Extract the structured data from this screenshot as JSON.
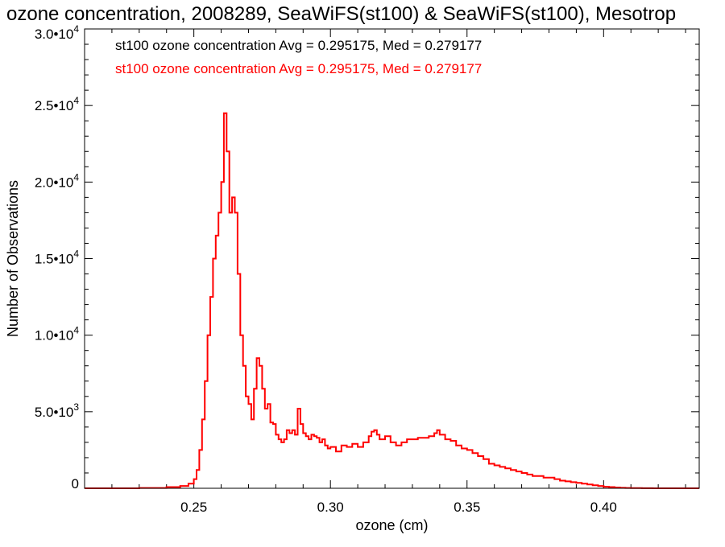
{
  "chart_data": {
    "type": "line",
    "title": "ozone concentration, 2008289, SeaWiFS(st100) & SeaWiFS(st100), Mesotrop",
    "xlabel": "ozone (cm)",
    "ylabel": "Number of Observations",
    "xlim": [
      0.21,
      0.435
    ],
    "ylim": [
      0,
      30000
    ],
    "x_ticks": [
      {
        "value": 0.25,
        "label": "0.25"
      },
      {
        "value": 0.3,
        "label": "0.30"
      },
      {
        "value": 0.35,
        "label": "0.35"
      },
      {
        "value": 0.4,
        "label": "0.40"
      }
    ],
    "y_ticks": [
      {
        "value": 0,
        "mantissa": "0",
        "exponent": ""
      },
      {
        "value": 5000,
        "mantissa": "5.0•10",
        "exponent": "3"
      },
      {
        "value": 10000,
        "mantissa": "1.0•10",
        "exponent": "4"
      },
      {
        "value": 15000,
        "mantissa": "1.5•10",
        "exponent": "4"
      },
      {
        "value": 20000,
        "mantissa": "2.0•10",
        "exponent": "4"
      },
      {
        "value": 25000,
        "mantissa": "2.5•10",
        "exponent": "4"
      },
      {
        "value": 30000,
        "mantissa": "3.0•10",
        "exponent": "4"
      }
    ],
    "grid": false,
    "annotations": [
      {
        "text": "st100 ozone concentration Avg = 0.295175, Med = 0.279177",
        "color": "#000000"
      },
      {
        "text": "st100 ozone concentration Avg = 0.295175, Med = 0.279177",
        "color": "#ff0000"
      }
    ],
    "series": [
      {
        "color": "#ff0000",
        "step": true,
        "x": [
          0.21,
          0.22,
          0.23,
          0.24,
          0.245,
          0.248,
          0.25,
          0.251,
          0.252,
          0.253,
          0.254,
          0.255,
          0.256,
          0.257,
          0.258,
          0.259,
          0.26,
          0.261,
          0.262,
          0.263,
          0.264,
          0.265,
          0.266,
          0.267,
          0.268,
          0.269,
          0.27,
          0.271,
          0.272,
          0.273,
          0.274,
          0.275,
          0.276,
          0.277,
          0.278,
          0.279,
          0.28,
          0.281,
          0.282,
          0.283,
          0.284,
          0.285,
          0.286,
          0.287,
          0.288,
          0.289,
          0.29,
          0.291,
          0.292,
          0.293,
          0.294,
          0.295,
          0.296,
          0.297,
          0.298,
          0.299,
          0.3,
          0.302,
          0.304,
          0.306,
          0.308,
          0.31,
          0.312,
          0.314,
          0.315,
          0.316,
          0.317,
          0.318,
          0.32,
          0.322,
          0.324,
          0.326,
          0.328,
          0.33,
          0.332,
          0.334,
          0.336,
          0.338,
          0.339,
          0.34,
          0.342,
          0.344,
          0.346,
          0.348,
          0.35,
          0.352,
          0.354,
          0.356,
          0.358,
          0.36,
          0.362,
          0.364,
          0.366,
          0.368,
          0.37,
          0.372,
          0.374,
          0.376,
          0.378,
          0.38,
          0.382,
          0.384,
          0.386,
          0.388,
          0.39,
          0.392,
          0.394,
          0.396,
          0.398,
          0.4,
          0.402,
          0.404,
          0.406,
          0.408,
          0.41,
          0.412,
          0.414,
          0.416,
          0.418,
          0.42,
          0.425,
          0.43
        ],
        "y": [
          0,
          0,
          20,
          80,
          150,
          300,
          600,
          1200,
          2500,
          4500,
          7000,
          10000,
          12500,
          15000,
          16500,
          18000,
          20000,
          24500,
          22000,
          18000,
          19000,
          18000,
          14000,
          10000,
          8000,
          6000,
          5500,
          4500,
          6500,
          8500,
          8000,
          6500,
          5200,
          5500,
          4300,
          4200,
          3500,
          3200,
          3000,
          3200,
          3800,
          3600,
          3800,
          3500,
          5200,
          4200,
          3600,
          3400,
          3200,
          3500,
          3400,
          3300,
          3000,
          3200,
          2800,
          2600,
          2700,
          2400,
          2800,
          2700,
          2900,
          2700,
          3000,
          3400,
          3700,
          3800,
          3500,
          3200,
          3400,
          3000,
          2800,
          3000,
          3200,
          3200,
          3300,
          3300,
          3400,
          3600,
          3800,
          3500,
          3200,
          3100,
          2800,
          2600,
          2500,
          2300,
          2100,
          1900,
          1600,
          1500,
          1400,
          1300,
          1200,
          1100,
          1000,
          900,
          800,
          800,
          700,
          700,
          600,
          500,
          450,
          400,
          350,
          300,
          250,
          200,
          150,
          100,
          80,
          50,
          30,
          20,
          10,
          10,
          5,
          5,
          0,
          0,
          0,
          0
        ]
      }
    ]
  }
}
